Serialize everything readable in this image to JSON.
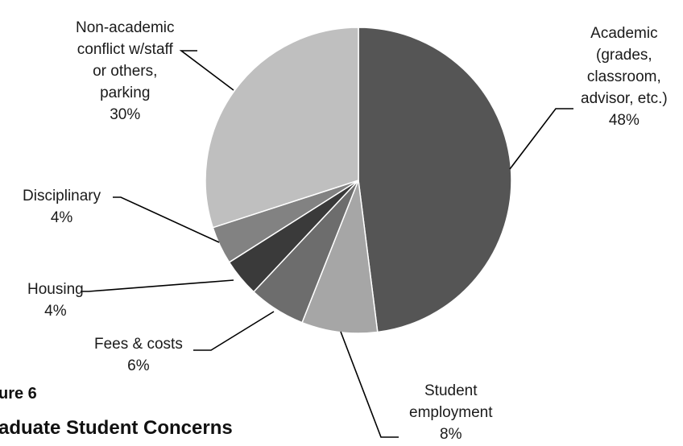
{
  "chart_data": {
    "type": "pie",
    "title": "",
    "slices": [
      {
        "label": "Academic (grades, classroom, advisor, etc.)",
        "name_lines": "Academic\n(grades,\nclassroom,\nadvisor, etc.)",
        "value": 48,
        "value_label": "48%",
        "color": "#555555"
      },
      {
        "label": "Student employment",
        "name_lines": "Student\nemployment",
        "value": 8,
        "value_label": "8%",
        "color": "#a6a6a6"
      },
      {
        "label": "Fees & costs",
        "name_lines": "Fees & costs",
        "value": 6,
        "value_label": "6%",
        "color": "#6d6d6d"
      },
      {
        "label": "Housing",
        "name_lines": "Housing",
        "value": 4,
        "value_label": "4%",
        "color": "#3a3a3a"
      },
      {
        "label": "Disciplinary",
        "name_lines": "Disciplinary",
        "value": 4,
        "value_label": "4%",
        "color": "#828282"
      },
      {
        "label": "Non-academic conflict w/staff or others, parking",
        "name_lines": "Non-academic\nconflict w/staff\nor others,\nparking",
        "value": 30,
        "value_label": "30%",
        "color": "#bfbfbf"
      }
    ]
  },
  "caption": {
    "figure_label": "ure 6",
    "figure_title": "aduate Student Concerns"
  }
}
